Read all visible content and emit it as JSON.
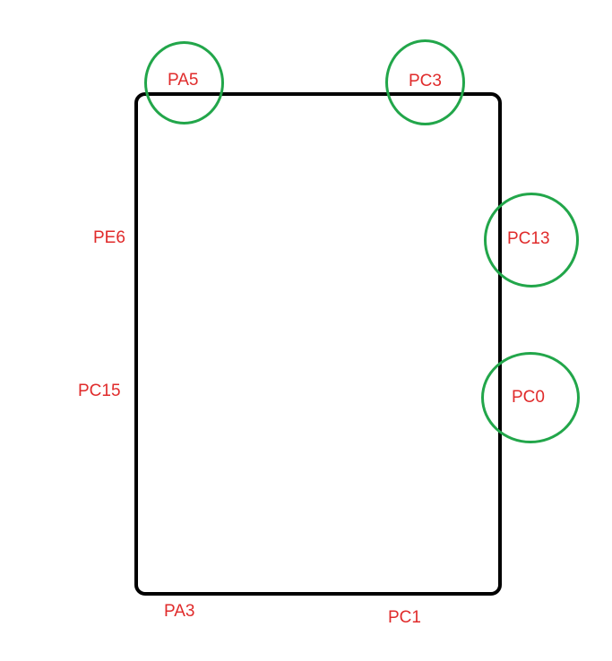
{
  "colors": {
    "board_outline": "#000000",
    "pin_label": "#e02b2b",
    "highlight_ring": "#22a64a",
    "background": "#ffffff"
  },
  "pins": {
    "top_left": "PA5",
    "top_right": "PC3",
    "left_upper": "PE6",
    "left_lower": "PC15",
    "right_upper": "PC13",
    "right_lower": "PC0",
    "bottom_left": "PA3",
    "bottom_right": "PC1"
  }
}
